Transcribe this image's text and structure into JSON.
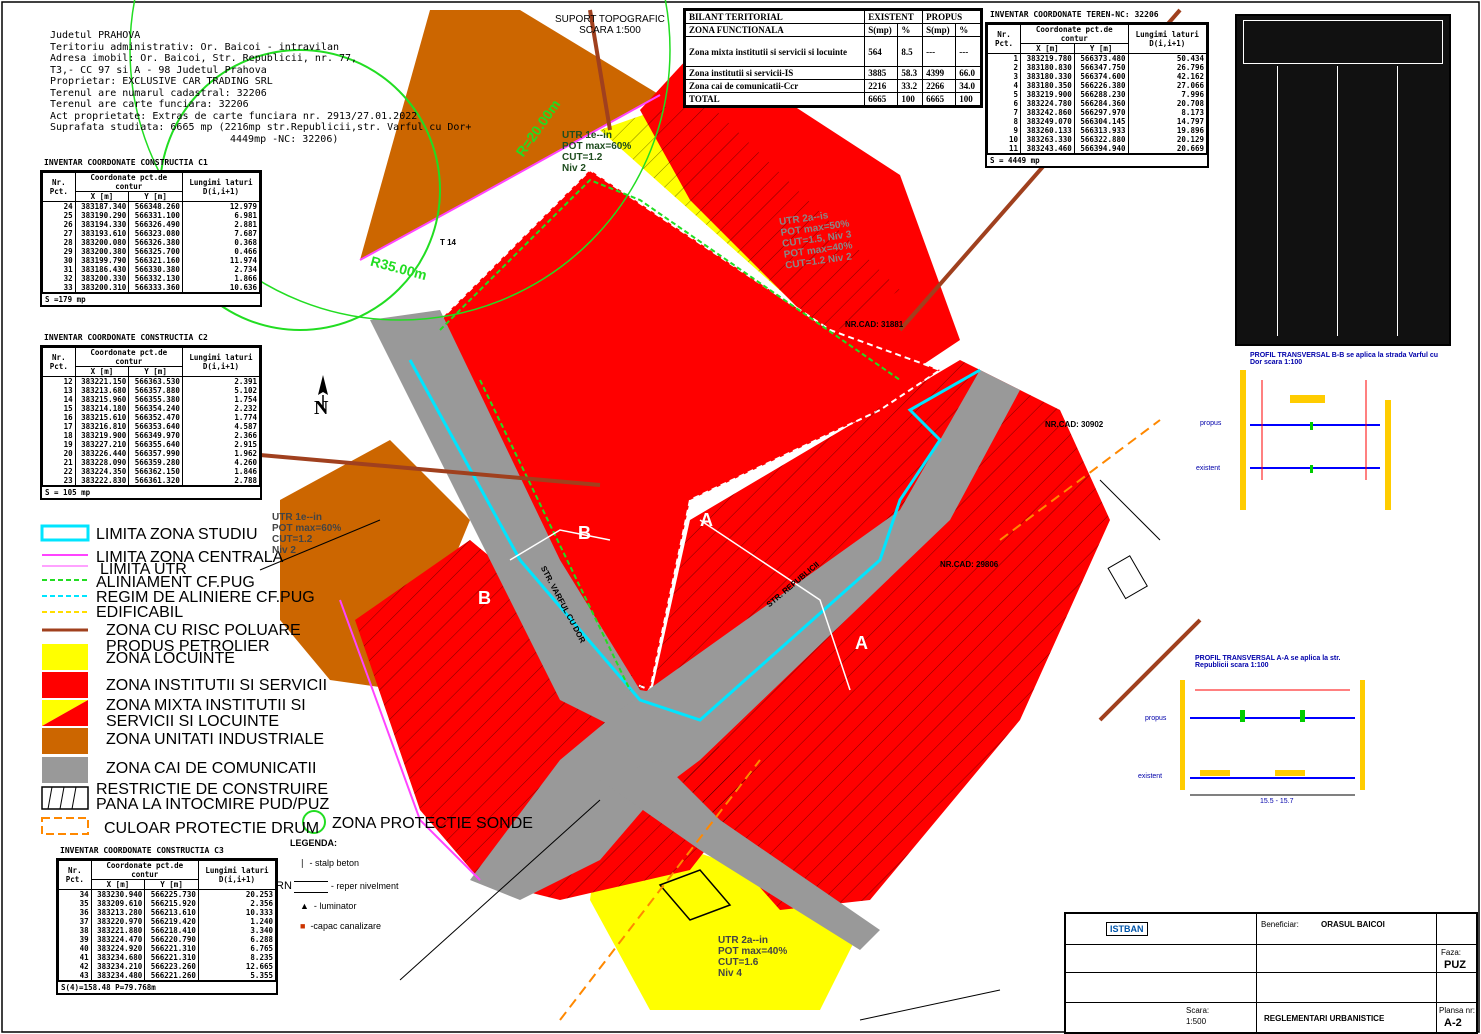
{
  "header": {
    "info_lines": [
      "Judetul PRAHOVA",
      "Teritoriu administrativ: Or. Baicoi - intravilan",
      "Adresa imobil: Or. Baicoi, Str. Republicii, nr. 77,",
      "T3,- CC 97 si A - 98 Judetul Prahova",
      "Proprietar: EXCLUSIVE CAR TRADING SRL",
      "Terenul are numarul cadastral: 32206",
      "Terenul are carte funciara: 32206",
      "Act proprietate: Extras de carte funciara nr. 2913/27.01.2022",
      "Suprafata studiata: 6665 mp (2216mp str.Republicii,str. Varful cu Dor+"
    ],
    "info_last": "4449mp -NC: 32206)",
    "suport_line1": "SUPORT TOPOGRAFIC",
    "suport_line2": "SCARA 1:500"
  },
  "bilant": {
    "title": "BILANT TERITORIAL",
    "col_existent": "EXISTENT",
    "col_propus": "PROPUS",
    "zona_functionala": "ZONA FUNCTIONALA",
    "unit_s": "S(mp)",
    "unit_p": "%",
    "rows": [
      {
        "zona": "Zona mixta institutii si servicii si locuinte",
        "s1": "564",
        "p1": "8.5",
        "s2": "---",
        "p2": "---"
      },
      {
        "zona": "Zona institutii si servicii-IS",
        "s1": "3885",
        "p1": "58.3",
        "s2": "4399",
        "p2": "66.0"
      },
      {
        "zona": "Zona cai de comunicatii-Ccr",
        "s1": "2216",
        "p1": "33.2",
        "s2": "2266",
        "p2": "34.0"
      },
      {
        "zona": "TOTAL",
        "s1": "6665",
        "p1": "100",
        "s2": "6665",
        "p2": "100"
      }
    ]
  },
  "teren_table": {
    "title": "INVENTAR COORDONATE TEREN-NC: 32206",
    "h_nr": "Nr. Pct.",
    "h_coord": "Coordonate pct.de contur",
    "h_x": "X [m]",
    "h_y": "Y [m]",
    "h_len": "Lungimi laturi D(i,i+1)",
    "rows": [
      [
        "1",
        "383219.780",
        "566373.480",
        "50.434"
      ],
      [
        "2",
        "383180.830",
        "566347.750",
        "26.796"
      ],
      [
        "3",
        "383180.330",
        "566374.600",
        "42.162"
      ],
      [
        "4",
        "383180.350",
        "566226.380",
        "27.066"
      ],
      [
        "5",
        "383219.900",
        "566288.230",
        "7.996"
      ],
      [
        "6",
        "383224.780",
        "566284.360",
        "20.708"
      ],
      [
        "7",
        "383242.860",
        "566297.970",
        "8.173"
      ],
      [
        "8",
        "383249.070",
        "566304.145",
        "14.797"
      ],
      [
        "9",
        "383260.133",
        "566313.933",
        "19.896"
      ],
      [
        "10",
        "383263.330",
        "566322.880",
        "20.129"
      ],
      [
        "11",
        "383243.460",
        "566394.940",
        "20.669"
      ]
    ],
    "total": "S = 4449 mp"
  },
  "c1_table": {
    "title": "INVENTAR COORDONATE CONSTRUCTIA C1",
    "h_nr": "Nr. Pct.",
    "h_coord": "Coordonate pct.de contur",
    "h_x": "X [m]",
    "h_y": "Y [m]",
    "h_len": "Lungimi laturi D(i,i+1)",
    "rows": [
      [
        "24",
        "383187.340",
        "566348.260",
        "12.979"
      ],
      [
        "25",
        "383190.290",
        "566331.100",
        "6.981"
      ],
      [
        "26",
        "383194.330",
        "566326.490",
        "2.881"
      ],
      [
        "27",
        "383193.610",
        "566323.080",
        "7.687"
      ],
      [
        "28",
        "383200.080",
        "566326.380",
        "0.368"
      ],
      [
        "29",
        "383200.380",
        "566325.700",
        "0.466"
      ],
      [
        "30",
        "383199.790",
        "566321.160",
        "11.974"
      ],
      [
        "31",
        "383186.430",
        "566330.380",
        "2.734"
      ],
      [
        "32",
        "383200.330",
        "566332.130",
        "1.866"
      ],
      [
        "33",
        "383200.310",
        "566333.360",
        "10.636"
      ]
    ],
    "total": "S =179 mp"
  },
  "c2_table": {
    "title": "INVENTAR COORDONATE CONSTRUCTIA C2",
    "h_nr": "Nr. Pct.",
    "h_coord": "Coordonate pct.de contur",
    "h_x": "X [m]",
    "h_y": "Y [m]",
    "h_len": "Lungimi laturi D(i,i+1)",
    "rows": [
      [
        "12",
        "383221.150",
        "566363.530",
        "2.391"
      ],
      [
        "13",
        "383213.680",
        "566357.880",
        "5.102"
      ],
      [
        "14",
        "383215.960",
        "566355.380",
        "1.754"
      ],
      [
        "15",
        "383214.180",
        "566354.240",
        "2.232"
      ],
      [
        "16",
        "383215.610",
        "566352.470",
        "1.774"
      ],
      [
        "17",
        "383216.810",
        "566353.640",
        "4.587"
      ],
      [
        "18",
        "383219.900",
        "566349.970",
        "2.366"
      ],
      [
        "19",
        "383227.210",
        "566355.640",
        "2.915"
      ],
      [
        "20",
        "383226.440",
        "566357.990",
        "1.962"
      ],
      [
        "21",
        "383228.090",
        "566359.280",
        "4.260"
      ],
      [
        "22",
        "383224.350",
        "566362.150",
        "1.846"
      ],
      [
        "23",
        "383222.830",
        "566361.320",
        "2.788"
      ]
    ],
    "total": "S = 105 mp"
  },
  "c3_table": {
    "title": "INVENTAR COORDONATE CONSTRUCTIA C3",
    "h_nr": "Nr. Pct.",
    "h_coord": "Coordonate pct.de contur",
    "h_x": "X [m]",
    "h_y": "Y [m]",
    "h_len": "Lungimi laturi D(i,i+1)",
    "rows": [
      [
        "34",
        "383230.940",
        "566225.730",
        "20.253"
      ],
      [
        "35",
        "383209.610",
        "566215.920",
        "2.356"
      ],
      [
        "36",
        "383213.280",
        "566213.610",
        "10.333"
      ],
      [
        "37",
        "383220.970",
        "566219.420",
        "1.240"
      ],
      [
        "38",
        "383221.880",
        "566218.410",
        "3.340"
      ],
      [
        "39",
        "383224.470",
        "566220.790",
        "6.288"
      ],
      [
        "40",
        "383224.920",
        "566221.310",
        "6.765"
      ],
      [
        "41",
        "383234.680",
        "566221.310",
        "8.235"
      ],
      [
        "42",
        "383234.210",
        "566223.260",
        "12.665"
      ],
      [
        "43",
        "383234.480",
        "566221.260",
        "5.355"
      ]
    ],
    "total": "S(4)=158.48  P=79.768m"
  },
  "legend": {
    "items": [
      "LIMITA ZONA STUDIU",
      "LIMITA ZONA CENTRALA",
      "LIMITA UTR",
      "ALINIAMENT CF.PUG",
      "REGIM DE ALINIERE CF.PUG",
      "EDIFICABIL",
      "ZONA CU RISC POLUARE",
      "PRODUS PETROLIER",
      "ZONA LOCUINTE",
      "ZONA INSTITUTII SI SERVICII",
      "ZONA MIXTA INSTITUTII SI",
      "SERVICII SI LOCUINTE",
      "ZONA UNITATI INDUSTRIALE",
      "ZONA CAI DE COMUNICATII",
      "RESTRICTIE DE CONSTRUIRE",
      "PANA LA INTOCMIRE PUD/PUZ",
      "CULOAR PROTECTIE DRUM",
      "ZONA PROTECTIE SONDE"
    ],
    "legenda_title": "LEGENDA:",
    "legenda_items": [
      "- stalp beton",
      "- reper nivelment",
      "- luminator",
      "-capac canalizare"
    ],
    "rn_label": "RN"
  },
  "map_labels": {
    "utr_top": [
      "UTR 1e--in",
      "POT max=60%",
      "CUT=1.2",
      "Niv 2"
    ],
    "utr_left": [
      "UTR 1e--in",
      "POT max=60%",
      "CUT=1.2",
      "Niv 2"
    ],
    "utr_bottom": [
      "UTR 2a--in",
      "POT max=40%",
      "CUT=1.6",
      "Niv 4"
    ],
    "utr_mid": [
      "UTR 2a--is",
      "POT max=50%",
      "CUT=1.5, Niv 3",
      "POT max=40%",
      "CUT=1.2 Niv 2"
    ],
    "r20": "R=20.00m",
    "r35": "R35.00m",
    "north": "N",
    "t": "T 14",
    "str_varful": "STR. VARFUL CU DOR",
    "str_republicii": "STR. REPUBLICII",
    "nr_cad1": "NR.CAD: 31881",
    "nr_cad2": "NR.CAD: 30902",
    "nr_cad3": "NR.CAD: 29806",
    "sect_a": "A",
    "sect_b": "B"
  },
  "profiles": {
    "p1_title": "PROFIL TRANSVERSAL B-B se aplica la strada Varful cu Dor scara 1:100",
    "p2_title": "PROFIL TRANSVERSAL A-A se aplica la str. Republicii scara 1:100",
    "propus": "propus",
    "existent": "existent",
    "p2_dim": "15.5 - 15.7"
  },
  "title_block": {
    "firm": "ISTBAN",
    "beneficiar": "Beneficiar:",
    "beneficiar_val": "ORASUL BAICOI",
    "faza_label": "Faza:",
    "faza_val": "PUZ",
    "plansa_label": "Plansa nr:",
    "plansa_val": "A-2",
    "sheet_title": "REGLEMENTARI URBANISTICE",
    "scara_label": "Scara:",
    "scara_val": "1:500"
  },
  "colors": {
    "red": "#ff0000",
    "yellow": "#ffff00",
    "orange": "#cc6600",
    "gray": "#999999",
    "cyan": "#00e5ff",
    "green": "#22dd22",
    "magenta": "#ff44ff",
    "brown": "#a0401e"
  }
}
